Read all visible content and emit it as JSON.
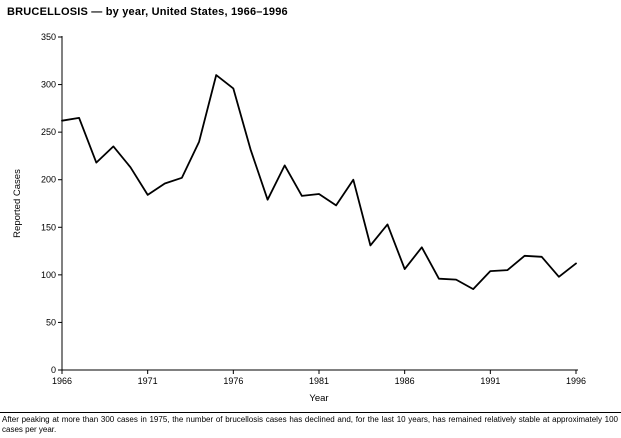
{
  "title": "BRUCELLOSIS — by year, United States, 1966–1996",
  "footnote": "After peaking at more than 300 cases in 1975, the number of brucellosis cases has declined and, for the last 10 years, has remained relatively stable at approximately 100 cases per year.",
  "chart_data": {
    "type": "line",
    "title": "BRUCELLOSIS — by year, United States, 1966–1996",
    "xlabel": "Year",
    "ylabel": "Reported Cases",
    "ylim": [
      0,
      350
    ],
    "yticks": [
      0,
      50,
      100,
      150,
      200,
      250,
      300,
      350
    ],
    "xticks": [
      1966,
      1971,
      1976,
      1981,
      1986,
      1991,
      1996
    ],
    "x": [
      1966,
      1967,
      1968,
      1969,
      1970,
      1971,
      1972,
      1973,
      1974,
      1975,
      1976,
      1977,
      1978,
      1979,
      1980,
      1981,
      1982,
      1983,
      1984,
      1985,
      1986,
      1987,
      1988,
      1989,
      1990,
      1991,
      1992,
      1993,
      1994,
      1995,
      1996
    ],
    "values": [
      262,
      265,
      218,
      235,
      213,
      184,
      196,
      202,
      240,
      310,
      296,
      232,
      179,
      215,
      183,
      185,
      173,
      200,
      131,
      153,
      106,
      129,
      96,
      95,
      85,
      104,
      105,
      120,
      119,
      98,
      112
    ],
    "line_color": "#000000",
    "background_color": "#ffffff",
    "grid": false,
    "legend": false
  }
}
